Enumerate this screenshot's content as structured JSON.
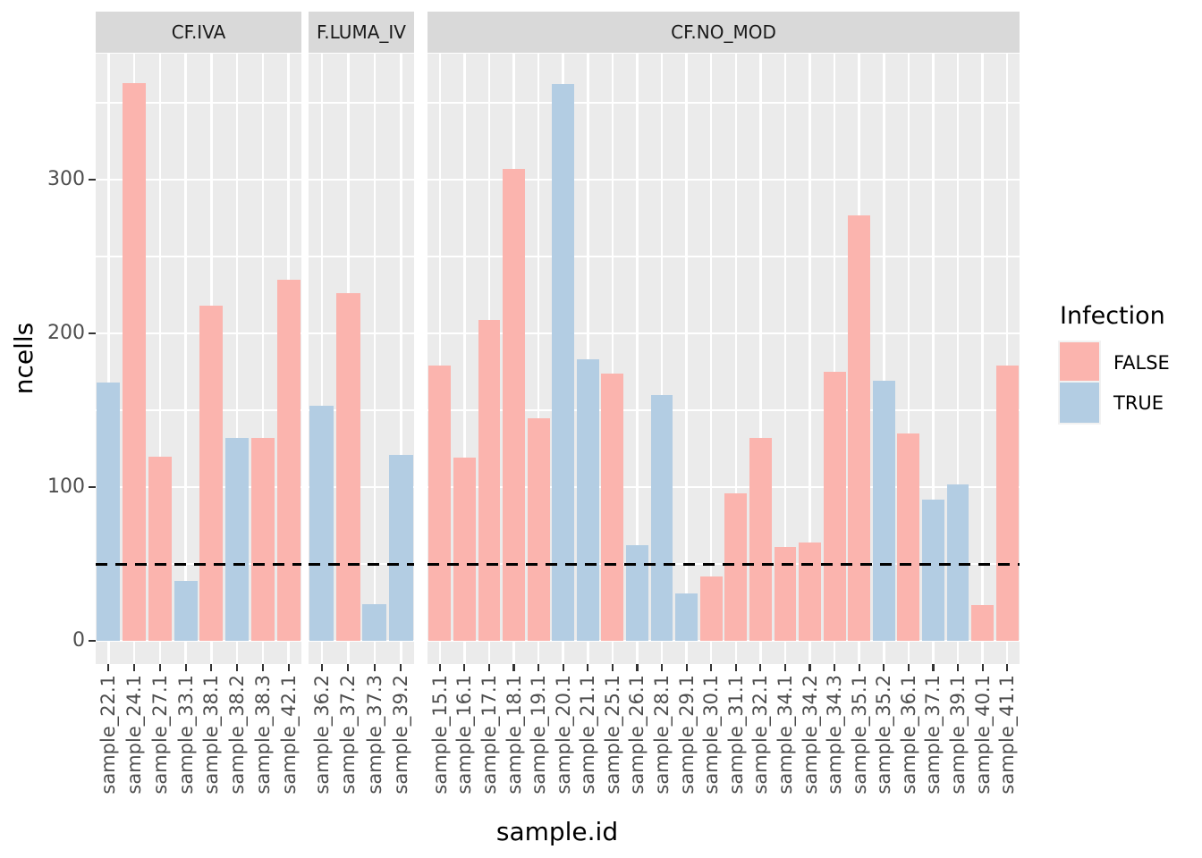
{
  "figure": {
    "y_axis_title": "ncells",
    "x_axis_title": "sample.id",
    "legend_title": "Infection",
    "colors": {
      "false_fill": "#FBB4AE",
      "true_fill": "#B3CDE3",
      "panel_background": "#EBEBEB",
      "strip_background": "#D9D9D9",
      "gridline": "#FFFFFF",
      "axis_text": "#4D4D4D",
      "tick_mark": "#333333",
      "dashed_line": "#000000"
    }
  },
  "chart_data": {
    "type": "bar",
    "title": "",
    "xlabel": "sample.id",
    "ylabel": "ncells",
    "ylim": [
      0,
      382
    ],
    "yticks": [
      0,
      100,
      200,
      300
    ],
    "minor_gridlines": [
      50,
      150,
      250,
      350
    ],
    "grid": "on",
    "legend_title": "Infection",
    "legend_position": "right",
    "legend_entries": [
      {
        "label": "FALSE",
        "color": "#FBB4AE"
      },
      {
        "label": "TRUE",
        "color": "#B3CDE3"
      }
    ],
    "hline": {
      "value": 50,
      "style": "dashed",
      "color": "#000000"
    },
    "facets": [
      {
        "label": "CF.IVA",
        "bars": [
          {
            "x": "sample_22.1",
            "infection": "TRUE",
            "ncells": 168
          },
          {
            "x": "sample_24.1",
            "infection": "FALSE",
            "ncells": 363
          },
          {
            "x": "sample_27.1",
            "infection": "FALSE",
            "ncells": 120
          },
          {
            "x": "sample_33.1",
            "infection": "TRUE",
            "ncells": 39
          },
          {
            "x": "sample_38.1",
            "infection": "FALSE",
            "ncells": 218
          },
          {
            "x": "sample_38.2",
            "infection": "TRUE",
            "ncells": 132
          },
          {
            "x": "sample_38.3",
            "infection": "FALSE",
            "ncells": 132
          },
          {
            "x": "sample_42.1",
            "infection": "FALSE",
            "ncells": 235
          }
        ]
      },
      {
        "label": "F.LUMA_IV",
        "bars": [
          {
            "x": "sample_36.2",
            "infection": "TRUE",
            "ncells": 153
          },
          {
            "x": "sample_37.2",
            "infection": "FALSE",
            "ncells": 226
          },
          {
            "x": "sample_37.3",
            "infection": "TRUE",
            "ncells": 24
          },
          {
            "x": "sample_39.2",
            "infection": "TRUE",
            "ncells": 121
          }
        ]
      },
      {
        "label": "CF.NO_MOD",
        "bars": [
          {
            "x": "sample_15.1",
            "infection": "FALSE",
            "ncells": 179
          },
          {
            "x": "sample_16.1",
            "infection": "FALSE",
            "ncells": 119
          },
          {
            "x": "sample_17.1",
            "infection": "FALSE",
            "ncells": 209
          },
          {
            "x": "sample_18.1",
            "infection": "FALSE",
            "ncells": 307
          },
          {
            "x": "sample_19.1",
            "infection": "FALSE",
            "ncells": 145
          },
          {
            "x": "sample_20.1",
            "infection": "TRUE",
            "ncells": 362
          },
          {
            "x": "sample_21.1",
            "infection": "TRUE",
            "ncells": 183
          },
          {
            "x": "sample_25.1",
            "infection": "FALSE",
            "ncells": 174
          },
          {
            "x": "sample_26.1",
            "infection": "TRUE",
            "ncells": 62
          },
          {
            "x": "sample_28.1",
            "infection": "TRUE",
            "ncells": 160
          },
          {
            "x": "sample_29.1",
            "infection": "TRUE",
            "ncells": 31
          },
          {
            "x": "sample_30.1",
            "infection": "FALSE",
            "ncells": 42
          },
          {
            "x": "sample_31.1",
            "infection": "FALSE",
            "ncells": 96
          },
          {
            "x": "sample_32.1",
            "infection": "FALSE",
            "ncells": 132
          },
          {
            "x": "sample_34.1",
            "infection": "FALSE",
            "ncells": 61
          },
          {
            "x": "sample_34.2",
            "infection": "FALSE",
            "ncells": 64
          },
          {
            "x": "sample_34.3",
            "infection": "FALSE",
            "ncells": 175
          },
          {
            "x": "sample_35.1",
            "infection": "FALSE",
            "ncells": 277
          },
          {
            "x": "sample_35.2",
            "infection": "TRUE",
            "ncells": 169
          },
          {
            "x": "sample_36.1",
            "infection": "FALSE",
            "ncells": 135
          },
          {
            "x": "sample_37.1",
            "infection": "TRUE",
            "ncells": 92
          },
          {
            "x": "sample_39.1",
            "infection": "TRUE",
            "ncells": 102
          },
          {
            "x": "sample_40.1",
            "infection": "FALSE",
            "ncells": 23
          },
          {
            "x": "sample_41.1",
            "infection": "FALSE",
            "ncells": 179
          }
        ]
      }
    ]
  }
}
